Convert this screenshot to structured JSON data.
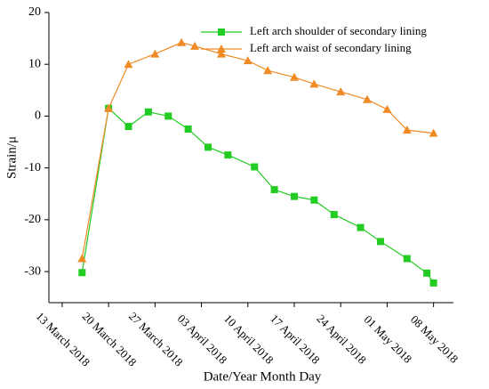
{
  "chart_data": {
    "type": "line",
    "x_label": "Date/Year Month Day",
    "y_label": "Strain/μ",
    "xlim": [
      "2018-03-11",
      "2018-05-11"
    ],
    "xticks": [
      {
        "value": "2018-03-13",
        "label": "13 March 2018"
      },
      {
        "value": "2018-03-20",
        "label": "20 March 2018"
      },
      {
        "value": "2018-03-27",
        "label": "27 March 2018"
      },
      {
        "value": "2018-04-03",
        "label": "03 April 2018"
      },
      {
        "value": "2018-04-10",
        "label": "10 April 2018"
      },
      {
        "value": "2018-04-17",
        "label": "17 April 2018"
      },
      {
        "value": "2018-04-24",
        "label": "24 April 2018"
      },
      {
        "value": "2018-05-01",
        "label": "01 May 2018"
      },
      {
        "value": "2018-05-08",
        "label": "08 May 2018"
      }
    ],
    "ylim": [
      -36,
      20
    ],
    "yticks": [
      -30,
      -20,
      -10,
      0,
      10,
      20
    ],
    "legend": "upper right",
    "series": [
      {
        "name": "Left arch shoulder of secondary lining",
        "color": "#22cc22",
        "marker": "square",
        "x": [
          "2018-03-16",
          "2018-03-20",
          "2018-03-23",
          "2018-03-26",
          "2018-03-29",
          "2018-04-01",
          "2018-04-04",
          "2018-04-07",
          "2018-04-11",
          "2018-04-14",
          "2018-04-17",
          "2018-04-20",
          "2018-04-23",
          "2018-04-27",
          "2018-04-30",
          "2018-05-04",
          "2018-05-07",
          "2018-05-08"
        ],
        "values": [
          -30.2,
          1.5,
          -2,
          0.8,
          0,
          -2.5,
          -6,
          -7.5,
          -9.8,
          -14.2,
          -15.5,
          -16.2,
          -19,
          -21.5,
          -24.2,
          -27.5,
          -30.3,
          -32.2
        ]
      },
      {
        "name": "Left arch waist of secondary lining",
        "color": "#f08a24",
        "marker": "triangle",
        "x": [
          "2018-03-16",
          "2018-03-20",
          "2018-03-23",
          "2018-03-27",
          "2018-03-31",
          "2018-04-02",
          "2018-04-06",
          "2018-04-10",
          "2018-04-13",
          "2018-04-17",
          "2018-04-20",
          "2018-04-24",
          "2018-04-28",
          "2018-05-01",
          "2018-05-04",
          "2018-05-08"
        ],
        "values": [
          -27.5,
          1.5,
          10,
          12,
          14.2,
          13.5,
          12,
          10.7,
          8.8,
          7.5,
          6.2,
          4.7,
          3.2,
          1.3,
          -2.7,
          -3.3
        ]
      }
    ]
  }
}
